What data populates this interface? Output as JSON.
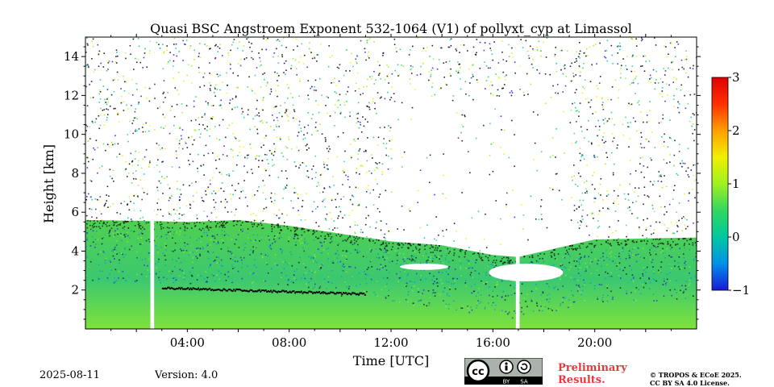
{
  "chart_data": {
    "type": "heatmap",
    "title": "Quasi BSC Angstroem Exponent 532-1064 (V1) of pollyxt_cyp at Limassol",
    "xlabel": "Time [UTC]",
    "ylabel": "Height [km]",
    "xlim_hours": [
      0,
      24
    ],
    "ylim_km": [
      0,
      15
    ],
    "x_ticks": [
      {
        "hour": 4,
        "label": "04:00"
      },
      {
        "hour": 8,
        "label": "08:00"
      },
      {
        "hour": 12,
        "label": "12:00"
      },
      {
        "hour": 16,
        "label": "16:00"
      },
      {
        "hour": 20,
        "label": "20:00"
      }
    ],
    "y_ticks": [
      {
        "km": 2,
        "label": "2"
      },
      {
        "km": 4,
        "label": "4"
      },
      {
        "km": 6,
        "label": "6"
      },
      {
        "km": 8,
        "label": "8"
      },
      {
        "km": 10,
        "label": "10"
      },
      {
        "km": 12,
        "label": "12"
      },
      {
        "km": 14,
        "label": "14"
      }
    ],
    "colorbar": {
      "range": [
        -1,
        3
      ],
      "ticks": [
        {
          "value": 3,
          "label": "3"
        },
        {
          "value": 2,
          "label": "2"
        },
        {
          "value": 1,
          "label": "1"
        },
        {
          "value": 0,
          "label": "0"
        },
        {
          "value": -1,
          "label": "−1"
        }
      ],
      "colors": [
        "#1a1ad8",
        "#0090e8",
        "#00c8a0",
        "#30d860",
        "#a0f020",
        "#f0f000",
        "#ffa000",
        "#ff3000",
        "#e00000"
      ]
    },
    "data_gaps_hours": [
      [
        2.55,
        2.7
      ],
      [
        16.9,
        17.05
      ]
    ],
    "aerosol_layer_top_km": [
      {
        "hour": 0,
        "km": 5.6
      },
      {
        "hour": 2.5,
        "km": 5.55
      },
      {
        "hour": 4,
        "km": 5.5
      },
      {
        "hour": 6,
        "km": 5.6
      },
      {
        "hour": 8,
        "km": 5.3
      },
      {
        "hour": 10,
        "km": 4.9
      },
      {
        "hour": 12,
        "km": 4.5
      },
      {
        "hour": 14,
        "km": 4.3
      },
      {
        "hour": 16,
        "km": 3.8
      },
      {
        "hour": 17,
        "km": 3.7
      },
      {
        "hour": 18,
        "km": 4.0
      },
      {
        "hour": 20,
        "km": 4.6
      },
      {
        "hour": 24,
        "km": 4.7
      }
    ],
    "typical_values": {
      "boundary_layer": 0.5,
      "elevated_layer": 0.2,
      "free_troposphere": "sparse/noisy"
    }
  },
  "footer": {
    "date": "2025-08-11",
    "version": "Version: 4.0",
    "preliminary_line1": "Preliminary",
    "preliminary_line2": "Results.",
    "copyright_line1": "© TROPOS & ECoE 2025.",
    "copyright_line2": "CC BY SA 4.0 License."
  },
  "license_badge": {
    "by": "BY",
    "sa": "SA",
    "cc": "cc"
  }
}
